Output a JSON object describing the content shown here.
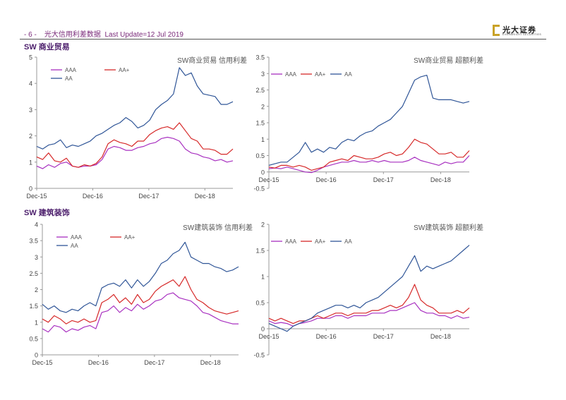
{
  "header": {
    "page_num": "- 6 -",
    "title": "光大信用利差数据",
    "update": "Last Update=12  Jul 2019"
  },
  "logo": {
    "name": "光大证券",
    "sub": "EVERBRIGHT SECURITIES"
  },
  "sections": {
    "s1": "SW 商业贸易",
    "s2": "SW 建筑装饰"
  },
  "colors": {
    "AAA": "#a830c0",
    "AA+": "#d62828",
    "AA": "#2f5597"
  },
  "chart_data": [
    {
      "id": "c1",
      "type": "line",
      "title": "SW商业贸易 信用利差",
      "x_ticks": [
        "Dec-15",
        "Dec-16",
        "Dec-17",
        "Dec-18"
      ],
      "ylim": [
        0,
        5
      ],
      "y_ticks": [
        "0",
        "1",
        "2",
        "3",
        "4",
        "5"
      ],
      "legend": [
        "AAA",
        "AA+",
        "AA"
      ],
      "series": [
        {
          "name": "AAA",
          "values": [
            0.85,
            0.75,
            0.9,
            0.8,
            0.95,
            1.0,
            0.85,
            0.8,
            0.85,
            0.85,
            0.9,
            1.1,
            1.5,
            1.6,
            1.55,
            1.45,
            1.45,
            1.55,
            1.6,
            1.7,
            1.75,
            1.9,
            1.95,
            1.9,
            1.8,
            1.5,
            1.35,
            1.3,
            1.2,
            1.15,
            1.05,
            1.1,
            1.0,
            1.05
          ]
        },
        {
          "name": "AA+",
          "values": [
            1.2,
            1.1,
            1.35,
            1.05,
            1.0,
            1.15,
            0.85,
            0.8,
            0.9,
            0.85,
            0.95,
            1.2,
            1.7,
            1.85,
            1.75,
            1.7,
            1.6,
            1.8,
            1.8,
            2.05,
            2.2,
            2.3,
            2.35,
            2.25,
            2.5,
            2.2,
            1.9,
            1.8,
            1.5,
            1.5,
            1.45,
            1.3,
            1.3,
            1.5
          ]
        },
        {
          "name": "AA",
          "values": [
            1.6,
            1.5,
            1.65,
            1.7,
            1.85,
            1.55,
            1.65,
            1.6,
            1.7,
            1.8,
            2.0,
            2.1,
            2.25,
            2.4,
            2.5,
            2.7,
            2.55,
            2.3,
            2.4,
            2.6,
            3.0,
            3.2,
            3.35,
            3.6,
            4.6,
            4.3,
            4.4,
            3.9,
            3.6,
            3.55,
            3.5,
            3.2,
            3.2,
            3.3
          ]
        }
      ]
    },
    {
      "id": "c2",
      "type": "line",
      "title": "SW商业贸易 超额利差",
      "x_ticks": [
        "Dec-15",
        "Dec-16",
        "Dec-17",
        "Dec-18"
      ],
      "ylim": [
        -0.5,
        3.5
      ],
      "y_ticks": [
        "-0.5",
        "0",
        "0.5",
        "1",
        "1.5",
        "2",
        "2.5",
        "3",
        "3.5"
      ],
      "legend": [
        "AAA",
        "AA+",
        "AA"
      ],
      "series": [
        {
          "name": "AAA",
          "values": [
            0.1,
            0.12,
            0.1,
            0.15,
            0.1,
            0.05,
            0.0,
            -0.02,
            0.05,
            0.15,
            0.2,
            0.25,
            0.3,
            0.3,
            0.35,
            0.3,
            0.3,
            0.35,
            0.3,
            0.35,
            0.3,
            0.3,
            0.3,
            0.35,
            0.45,
            0.35,
            0.3,
            0.25,
            0.2,
            0.3,
            0.25,
            0.3,
            0.3,
            0.5
          ]
        },
        {
          "name": "AA+",
          "values": [
            0.15,
            0.12,
            0.2,
            0.2,
            0.15,
            0.2,
            0.15,
            0.05,
            0.1,
            0.15,
            0.3,
            0.35,
            0.4,
            0.35,
            0.5,
            0.45,
            0.4,
            0.4,
            0.45,
            0.55,
            0.6,
            0.5,
            0.55,
            0.75,
            1.0,
            0.9,
            0.85,
            0.7,
            0.55,
            0.55,
            0.6,
            0.45,
            0.45,
            0.65
          ]
        },
        {
          "name": "AA",
          "values": [
            0.2,
            0.25,
            0.3,
            0.3,
            0.45,
            0.6,
            0.9,
            0.6,
            0.7,
            0.6,
            0.75,
            0.7,
            0.9,
            1.0,
            0.95,
            1.1,
            1.2,
            1.25,
            1.4,
            1.5,
            1.6,
            1.8,
            2.0,
            2.4,
            2.8,
            2.9,
            2.95,
            2.25,
            2.2,
            2.2,
            2.2,
            2.15,
            2.1,
            2.15
          ]
        }
      ]
    },
    {
      "id": "c3",
      "type": "line",
      "title": "SW建筑装饰 信用利差",
      "x_ticks": [
        "Dec-15",
        "Dec-16",
        "Dec-17",
        "Dec-18"
      ],
      "ylim": [
        0,
        4
      ],
      "y_ticks": [
        "0",
        "0.5",
        "1",
        "1.5",
        "2",
        "2.5",
        "3",
        "3.5",
        "4"
      ],
      "legend": [
        "AAA",
        "AA+",
        "AA"
      ],
      "series": [
        {
          "name": "AAA",
          "values": [
            0.8,
            0.7,
            0.9,
            0.85,
            0.7,
            0.8,
            0.75,
            0.85,
            0.9,
            0.8,
            1.3,
            1.35,
            1.5,
            1.3,
            1.45,
            1.35,
            1.55,
            1.4,
            1.5,
            1.65,
            1.7,
            1.85,
            1.9,
            1.75,
            1.7,
            1.65,
            1.5,
            1.3,
            1.25,
            1.15,
            1.05,
            1.0,
            0.95,
            0.95
          ]
        },
        {
          "name": "AA+",
          "values": [
            1.1,
            1.0,
            1.2,
            1.1,
            0.95,
            1.05,
            1.0,
            1.1,
            1.0,
            1.05,
            1.6,
            1.7,
            1.85,
            1.6,
            1.75,
            1.55,
            1.85,
            1.6,
            1.7,
            1.95,
            2.1,
            2.2,
            2.3,
            2.1,
            2.4,
            2.0,
            1.7,
            1.6,
            1.45,
            1.35,
            1.3,
            1.25,
            1.3,
            1.35
          ]
        },
        {
          "name": "AA",
          "values": [
            1.55,
            1.4,
            1.5,
            1.35,
            1.3,
            1.4,
            1.35,
            1.5,
            1.6,
            1.5,
            2.05,
            2.15,
            2.2,
            2.1,
            2.3,
            2.05,
            2.3,
            2.1,
            2.25,
            2.5,
            2.8,
            2.9,
            3.1,
            3.2,
            3.45,
            3.0,
            2.9,
            2.8,
            2.8,
            2.7,
            2.65,
            2.55,
            2.6,
            2.7
          ]
        }
      ]
    },
    {
      "id": "c4",
      "type": "line",
      "title": "SW建筑装饰 超额利差",
      "x_ticks": [
        "Dec-15",
        "Dec-16",
        "Dec-17",
        "Dec-18"
      ],
      "ylim": [
        -0.5,
        2
      ],
      "y_ticks": [
        "-0.5",
        "0",
        "0.5",
        "1",
        "1.5",
        "2"
      ],
      "legend": [
        "AAA",
        "AA+",
        "AA"
      ],
      "series": [
        {
          "name": "AAA",
          "values": [
            0.15,
            0.1,
            0.12,
            0.1,
            0.05,
            0.1,
            0.12,
            0.15,
            0.2,
            0.2,
            0.2,
            0.25,
            0.25,
            0.2,
            0.25,
            0.25,
            0.25,
            0.3,
            0.3,
            0.3,
            0.35,
            0.35,
            0.4,
            0.45,
            0.5,
            0.35,
            0.3,
            0.3,
            0.25,
            0.25,
            0.2,
            0.25,
            0.2,
            0.22
          ]
        },
        {
          "name": "AA+",
          "values": [
            0.2,
            0.15,
            0.2,
            0.15,
            0.1,
            0.15,
            0.15,
            0.2,
            0.25,
            0.2,
            0.25,
            0.3,
            0.3,
            0.25,
            0.3,
            0.3,
            0.3,
            0.35,
            0.35,
            0.4,
            0.45,
            0.4,
            0.45,
            0.6,
            0.85,
            0.55,
            0.45,
            0.4,
            0.3,
            0.3,
            0.3,
            0.35,
            0.3,
            0.4
          ]
        },
        {
          "name": "AA",
          "values": [
            0.1,
            0.05,
            0.0,
            -0.05,
            0.05,
            0.1,
            0.15,
            0.2,
            0.3,
            0.35,
            0.4,
            0.45,
            0.45,
            0.4,
            0.45,
            0.4,
            0.5,
            0.55,
            0.6,
            0.7,
            0.8,
            0.9,
            1.0,
            1.2,
            1.4,
            1.1,
            1.2,
            1.15,
            1.2,
            1.25,
            1.3,
            1.4,
            1.5,
            1.6
          ]
        }
      ]
    }
  ]
}
